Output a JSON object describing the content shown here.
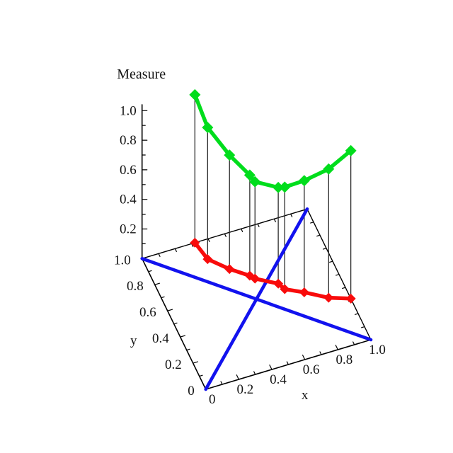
{
  "page": {
    "background": "#ffffff"
  },
  "chart_data": {
    "type": "line",
    "subtype": "3d-path-with-measure-droplines",
    "title": "Measure",
    "xlabel": "x",
    "ylabel": "y",
    "zlabel": "Measure",
    "x_range": [
      0,
      1
    ],
    "y_range": [
      0,
      1
    ],
    "z_range": [
      0,
      1
    ],
    "x_tick_values": [
      0,
      0.2,
      0.4,
      0.6,
      0.8,
      1.0
    ],
    "x_tick_labels": [
      "0",
      "0.2",
      "0.4",
      "0.6",
      "0.8",
      "1.0"
    ],
    "y_tick_values": [
      0,
      0.2,
      0.4,
      0.6,
      0.8,
      1.0
    ],
    "y_tick_labels": [
      "0",
      "0.2",
      "0.4",
      "0.6",
      "0.8",
      "1.0"
    ],
    "z_tick_values": [
      0.2,
      0.4,
      0.6,
      0.8,
      1.0
    ],
    "z_tick_labels": [
      "0.2",
      "0.4",
      "0.6",
      "0.8",
      "1.0"
    ],
    "minor_tick_step": 0.1,
    "grid": false,
    "legend": null,
    "marker": "diamond",
    "colors": {
      "measure_curve": "#00dd1c",
      "path_curve": "#f80b0b",
      "diagonals": "#1212ee",
      "axes": "#000000",
      "droplines": "#2a2a2a"
    },
    "path_points": [
      {
        "x": 0.32,
        "y": 1.0
      },
      {
        "x": 0.345,
        "y": 0.865
      },
      {
        "x": 0.435,
        "y": 0.755
      },
      {
        "x": 0.525,
        "y": 0.67
      },
      {
        "x": 0.545,
        "y": 0.64
      },
      {
        "x": 0.655,
        "y": 0.56
      },
      {
        "x": 0.675,
        "y": 0.51
      },
      {
        "x": 0.77,
        "y": 0.45
      },
      {
        "x": 0.885,
        "y": 0.365
      },
      {
        "x": 1.0,
        "y": 0.315
      }
    ],
    "measure_values": [
      1.0,
      0.89,
      0.77,
      0.68,
      0.655,
      0.65,
      0.69,
      0.755,
      0.87,
      1.0
    ],
    "diagonals": [
      {
        "from": {
          "x": 0,
          "y": 0
        },
        "to": {
          "x": 1,
          "y": 1
        }
      },
      {
        "from": {
          "x": 0,
          "y": 1
        },
        "to": {
          "x": 1,
          "y": 0
        }
      }
    ],
    "droplines": true
  }
}
